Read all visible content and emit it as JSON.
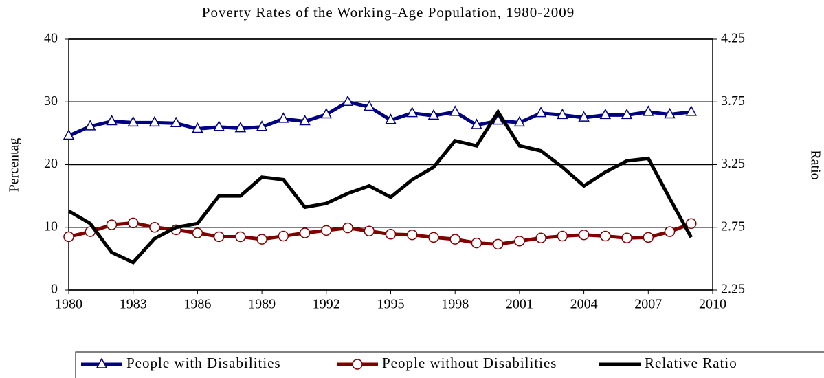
{
  "chart_data": {
    "type": "line",
    "title": "Poverty Rates of the Working-Age Population, 1980-2009",
    "y_label": "Percentag",
    "y2_label": "Ratio",
    "x": [
      1980,
      1981,
      1982,
      1983,
      1984,
      1985,
      1986,
      1987,
      1988,
      1989,
      1990,
      1991,
      1992,
      1993,
      1994,
      1995,
      1996,
      1997,
      1998,
      1999,
      2000,
      2001,
      2002,
      2003,
      2004,
      2005,
      2006,
      2007,
      2008,
      2009
    ],
    "xlim": [
      1980,
      2010
    ],
    "xticks": [
      1980,
      1983,
      1986,
      1989,
      1992,
      1995,
      1998,
      2001,
      2004,
      2007,
      2010
    ],
    "ylim": [
      0,
      40
    ],
    "yticks": [
      0,
      10,
      20,
      30,
      40
    ],
    "y2lim": [
      2.25,
      4.25
    ],
    "y2ticks": [
      2.25,
      2.75,
      3.25,
      3.75,
      4.25
    ],
    "grid": true,
    "legend": "bottom",
    "series": [
      {
        "name": "People with Disabilities",
        "color": "#000080",
        "marker": "triangle",
        "values": [
          24.6,
          26.1,
          26.9,
          26.7,
          26.7,
          26.6,
          25.7,
          26.0,
          25.8,
          26.0,
          27.3,
          26.9,
          28.0,
          30.0,
          29.2,
          27.1,
          28.2,
          27.8,
          28.4,
          26.3,
          27.0,
          26.7,
          28.2,
          27.9,
          27.5,
          27.9,
          27.9,
          28.4,
          28.0,
          28.4
        ]
      },
      {
        "name": "People without Disabilities",
        "color": "#800000",
        "marker": "circle",
        "values": [
          8.5,
          9.3,
          10.4,
          10.7,
          10.0,
          9.6,
          9.1,
          8.5,
          8.5,
          8.1,
          8.6,
          9.1,
          9.5,
          9.9,
          9.4,
          8.9,
          8.8,
          8.4,
          8.1,
          7.5,
          7.3,
          7.8,
          8.3,
          8.6,
          8.8,
          8.6,
          8.3,
          8.4,
          9.3,
          10.6
        ]
      },
      {
        "name": "Relative Ratio",
        "color": "#000000",
        "marker": "none",
        "axis": "y2",
        "values": [
          2.88,
          2.78,
          2.55,
          2.47,
          2.66,
          2.75,
          2.78,
          3.0,
          3.0,
          3.15,
          3.13,
          2.91,
          2.94,
          3.02,
          3.08,
          2.99,
          3.13,
          3.23,
          3.44,
          3.4,
          3.67,
          3.4,
          3.36,
          3.23,
          3.08,
          3.19,
          3.28,
          3.3,
          2.98,
          2.67
        ]
      }
    ]
  }
}
